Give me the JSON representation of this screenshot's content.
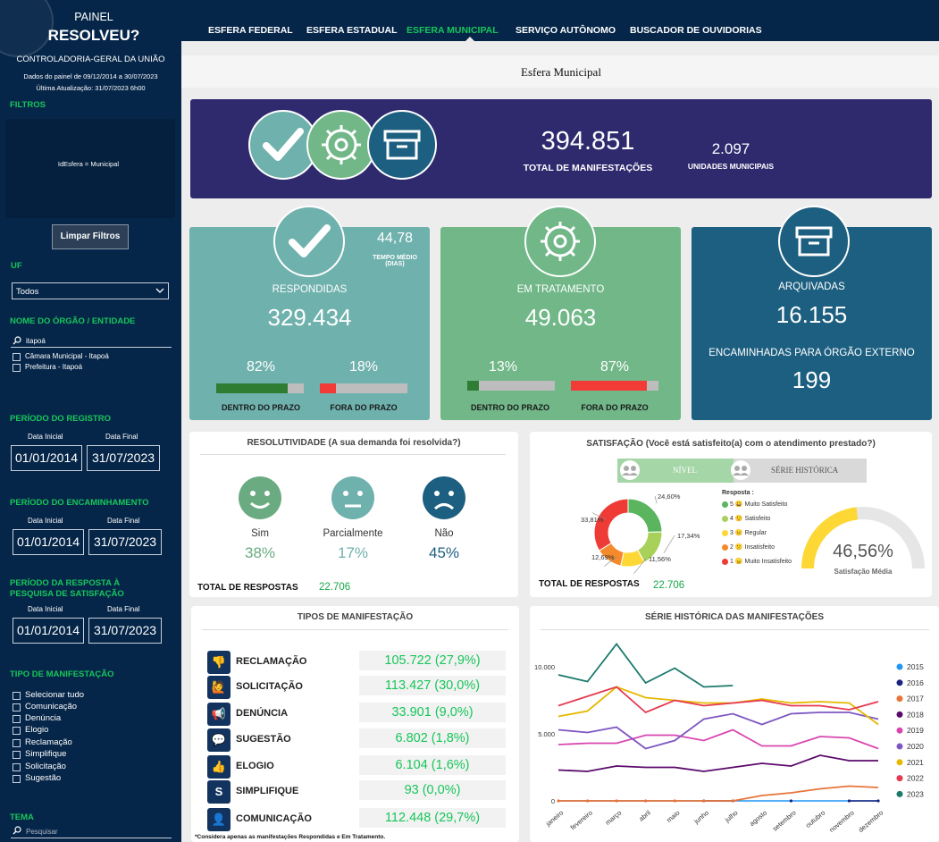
{
  "sidebar": {
    "painel": "PAINEL",
    "resolveu": "RESOLVEU?",
    "org": "CONTROLADORIA-GERAL DA UNIÃO",
    "dados": "Dados do painel de 09/12/2014 a 30/07/2023",
    "atualizacao": "Última Atualização: 31/07/2023 6h00",
    "filtros_title": "FILTROS",
    "filtro_ativo": "IdEsfera = Municipal",
    "limpar": "Limpar Filtros",
    "uf_title": "UF",
    "uf_value": "Todos",
    "orgao_title": "NOME DO ÓRGÃO / ENTIDADE",
    "orgao_search": "itapoá",
    "orgao_items": [
      "Câmara Municipal - Itapoá",
      "Prefeitura - Itapoá"
    ],
    "periodo_registro": "PERÍODO DO REGISTRO",
    "periodo_encaminhamento": "PERÍODO DO ENCAMINHAMENTO",
    "periodo_resposta": "PERÍODO DA RESPOSTA À PESQUISA DE SATISFAÇÃO",
    "data_inicial": "Data Inicial",
    "data_final": "Data Final",
    "date_start": "01/01/2014",
    "date_end": "31/07/2023",
    "tipo_title": "TIPO DE MANIFESTAÇÃO",
    "tipo_items": [
      "Selecionar tudo",
      "Comunicação",
      "Denúncia",
      "Elogio",
      "Reclamação",
      "Simplifique",
      "Solicitação",
      "Sugestão"
    ],
    "tema_title": "TEMA",
    "tema_search": "Pesquisar"
  },
  "nav": {
    "tabs": [
      "ESFERA FEDERAL",
      "ESFERA ESTADUAL",
      "ESFERA MUNICIPAL",
      "SERVIÇO AUTÔNOMO",
      "BUSCADOR DE OUVIDORIAS"
    ],
    "active": "ESFERA MUNICIPAL"
  },
  "page_title": "Esfera Municipal",
  "summary": {
    "total": "394.851",
    "total_label": "TOTAL DE MANIFESTAÇÕES",
    "unidades": "2.097",
    "unidades_label": "UNIDADES MUNICIPAIS"
  },
  "respondidas": {
    "tempo": "44,78",
    "tempo_label": "TEMPO MÉDIO (DIAS)",
    "label": "RESPONDIDAS",
    "value": "329.434",
    "dentro_pct": "82%",
    "fora_pct": "18%",
    "dentro": 82,
    "fora": 18,
    "dentro_label": "DENTRO DO PRAZO",
    "fora_label": "FORA DO PRAZO"
  },
  "tratamento": {
    "label": "EM TRATAMENTO",
    "value": "49.063",
    "dentro_pct": "13%",
    "fora_pct": "87%",
    "dentro": 13,
    "fora": 87,
    "dentro_label": "DENTRO DO PRAZO",
    "fora_label": "FORA DO PRAZO"
  },
  "arquivadas": {
    "label": "ARQUIVADAS",
    "value": "16.155",
    "enc_label": "ENCAMINHADAS PARA ÓRGÃO EXTERNO",
    "enc_value": "199"
  },
  "resolutividade": {
    "title": "RESOLUTIVIDADE (A sua demanda foi resolvida?)",
    "items": [
      {
        "label": "Sim",
        "pct": "38%"
      },
      {
        "label": "Parcialmente",
        "pct": "17%"
      },
      {
        "label": "Não",
        "pct": "45%"
      }
    ],
    "total_label": "TOTAL DE RESPOSTAS",
    "total": "22.706"
  },
  "satisfacao": {
    "title": "SATISFAÇÃO (Você está satisfeito(a) com o atendimento prestado?)",
    "tab_nivel": "NÍVEL",
    "tab_serie": "SÉRIE HISTÓRICA",
    "resposta": "Resposta :",
    "legend": [
      "5 😀 Muito Satisfeito",
      "4 🙂 Satisfeito",
      "3 😐 Regular",
      "2 🙁 Insatisfeito",
      "1 😠 Muito Insatisfeito"
    ],
    "total_label": "TOTAL DE RESPOSTAS",
    "total": "22.706",
    "media": "46,56%",
    "media_label": "Satisfação Média",
    "media_value": 46.56,
    "colors": [
      "#5ab55e",
      "#a8d15a",
      "#fdd835",
      "#f58a2c",
      "#ef3b36"
    ]
  },
  "tipos": {
    "title": "TIPOS DE MANIFESTAÇÃO",
    "rows": [
      {
        "icon": "thumbs-down-icon",
        "label": "RECLAMAÇÃO",
        "value": "105.722 (27,9%)"
      },
      {
        "icon": "person-icon",
        "label": "SOLICITAÇÃO",
        "value": "113.427 (30,0%)"
      },
      {
        "icon": "megaphone-icon",
        "label": "DENÚNCIA",
        "value": "33.901 (9,0%)"
      },
      {
        "icon": "chat-icon",
        "label": "SUGESTÃO",
        "value": "6.802 (1,8%)"
      },
      {
        "icon": "thumbs-up-icon",
        "label": "ELOGIO",
        "value": "6.104 (1,6%)"
      },
      {
        "icon": "simplifique-icon",
        "label": "SIMPLIFIQUE",
        "value": "93 (0,0%)"
      },
      {
        "icon": "comunicacao-icon",
        "label": "COMUNICAÇÃO",
        "value": "112.448 (29,7%)"
      }
    ],
    "note": "*Considera apenas as manifestações Respondidas e Em Tratamento."
  },
  "chart_data": [
    {
      "type": "pie",
      "title": "SATISFAÇÃO (Você está satisfeito(a) com o atendimento prestado?)",
      "categories": [
        "5 Muito Satisfeito",
        "4 Satisfeito",
        "3 Regular",
        "2 Insatisfeito",
        "1 Muito Insatisfeito"
      ],
      "values": [
        24.6,
        17.34,
        11.56,
        12.69,
        33.81
      ],
      "value_labels": [
        "24,60%",
        "17,34%",
        "11,56%",
        "12,69%",
        "33,81%"
      ]
    },
    {
      "type": "line",
      "title": "SÉRIE HISTÓRICA DAS MANIFESTAÇÕES",
      "categories": [
        "janeiro",
        "fevereiro",
        "março",
        "abril",
        "maio",
        "junho",
        "julho",
        "agosto",
        "setembro",
        "outubro",
        "novembro",
        "dezembro"
      ],
      "ylim": [
        0,
        12000
      ],
      "yticks": [
        "0",
        "5.000",
        "10.000"
      ],
      "ytick_values": [
        0,
        5000,
        10000
      ],
      "grid": false,
      "legend": "right",
      "series": [
        {
          "name": "2015",
          "color": "#2196f3",
          "values": [
            0,
            0,
            0,
            0,
            0,
            0,
            0,
            0,
            0,
            0,
            0,
            0
          ]
        },
        {
          "name": "2016",
          "color": "#1a237e",
          "values": [
            null,
            null,
            null,
            null,
            null,
            0,
            0,
            null,
            0,
            null,
            0,
            0
          ]
        },
        {
          "name": "2017",
          "color": "#e8743b",
          "values": [
            0,
            0,
            0,
            0,
            0,
            0,
            0,
            400,
            600,
            900,
            1100,
            1000
          ]
        },
        {
          "name": "2018",
          "color": "#5b0a6b",
          "values": [
            2300,
            2200,
            2600,
            2500,
            2500,
            2200,
            2500,
            2800,
            2600,
            3400,
            3000,
            3000
          ]
        },
        {
          "name": "2019",
          "color": "#d946b0",
          "values": [
            4200,
            4300,
            4300,
            4900,
            4900,
            4500,
            5300,
            4100,
            4100,
            4800,
            4700,
            3900
          ]
        },
        {
          "name": "2020",
          "color": "#7e57c2",
          "values": [
            5300,
            5100,
            5500,
            3900,
            4500,
            6100,
            6500,
            5700,
            6500,
            6600,
            6600,
            6100
          ]
        },
        {
          "name": "2021",
          "color": "#e6b800",
          "values": [
            6300,
            6700,
            8500,
            7700,
            7500,
            7300,
            7300,
            7600,
            7300,
            7400,
            7300,
            5700
          ]
        },
        {
          "name": "2022",
          "color": "#e53950",
          "values": [
            7100,
            7800,
            8500,
            6600,
            7500,
            7100,
            7300,
            7500,
            7100,
            7100,
            6800,
            7400
          ]
        },
        {
          "name": "2023",
          "color": "#1c7a6c",
          "values": [
            9400,
            8900,
            11700,
            8800,
            9900,
            8500,
            8600,
            null,
            null,
            null,
            null,
            null
          ]
        }
      ]
    }
  ]
}
